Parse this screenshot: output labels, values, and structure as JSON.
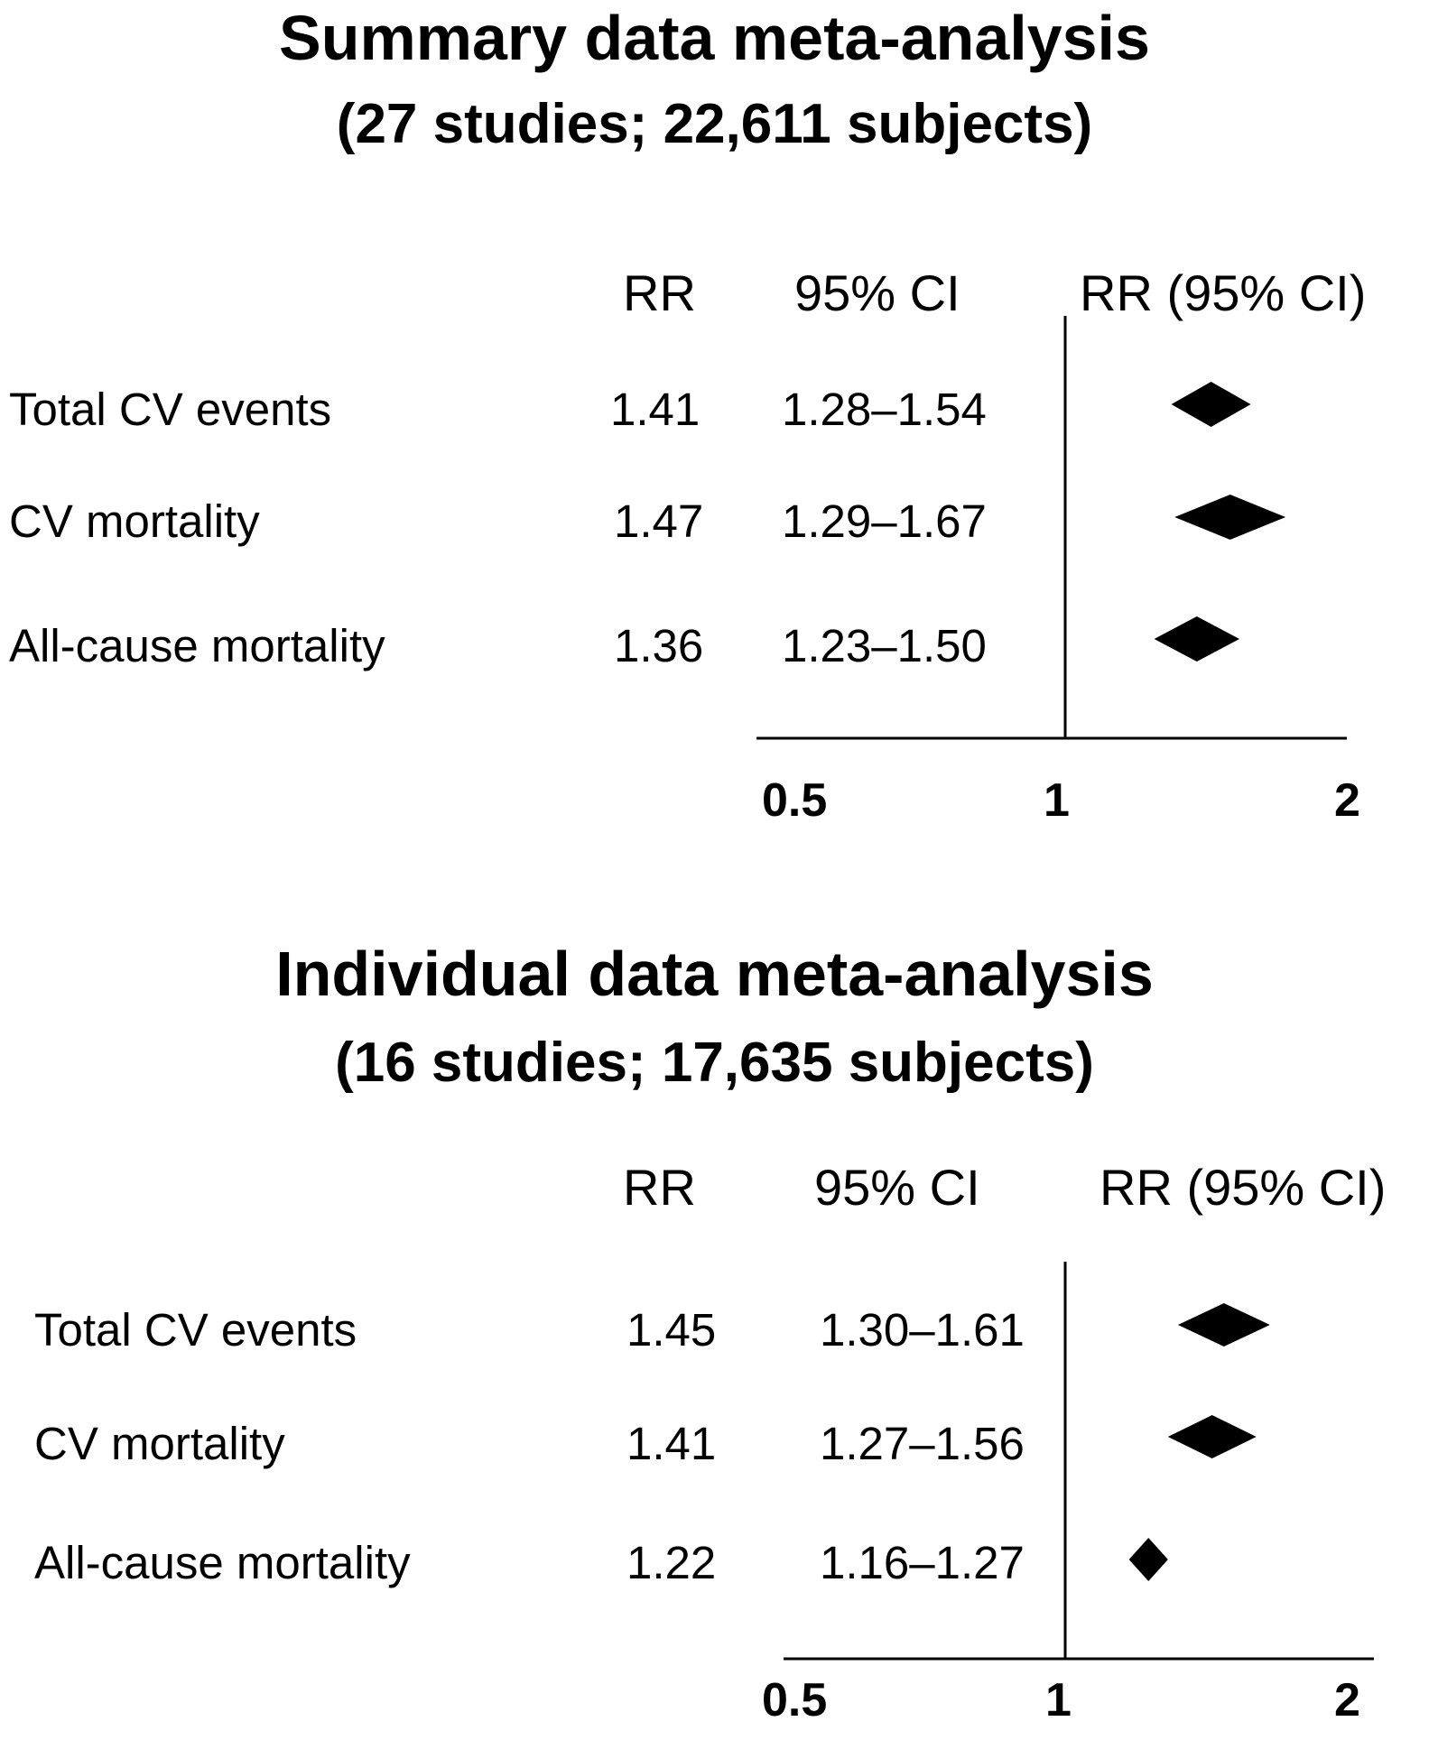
{
  "chart_data": [
    {
      "type": "forest",
      "title": "Summary data meta-analysis",
      "subtitle": "(27 studies; 22,611 subjects)",
      "columns": {
        "rr": "RR",
        "ci": "95% CI",
        "plot": "RR (95% CI)"
      },
      "rows": [
        {
          "label": "Total CV events",
          "rr": 1.41,
          "rr_text": "1.41",
          "ci_low": 1.28,
          "ci_high": 1.54,
          "ci_text": "1.28–1.54"
        },
        {
          "label": "CV mortality",
          "rr": 1.47,
          "rr_text": "1.47",
          "ci_low": 1.29,
          "ci_high": 1.67,
          "ci_text": "1.29–1.67"
        },
        {
          "label": "All-cause mortality",
          "rr": 1.36,
          "rr_text": "1.36",
          "ci_low": 1.23,
          "ci_high": 1.5,
          "ci_text": "1.23–1.50"
        }
      ],
      "x_scale": "log",
      "x_ticks": [
        "0.5",
        "1",
        "2"
      ],
      "xlim": [
        0.5,
        2
      ],
      "reference_line": 1,
      "marker": "diamond"
    },
    {
      "type": "forest",
      "title": "Individual data meta-analysis",
      "subtitle": "(16 studies; 17,635 subjects)",
      "columns": {
        "rr": "RR",
        "ci": "95% CI",
        "plot": "RR (95% CI)"
      },
      "rows": [
        {
          "label": "Total CV events",
          "rr": 1.45,
          "rr_text": "1.45",
          "ci_low": 1.3,
          "ci_high": 1.61,
          "ci_text": "1.30–1.61"
        },
        {
          "label": "CV mortality",
          "rr": 1.41,
          "rr_text": "1.41",
          "ci_low": 1.27,
          "ci_high": 1.56,
          "ci_text": "1.27–1.56"
        },
        {
          "label": "All-cause mortality",
          "rr": 1.22,
          "rr_text": "1.22",
          "ci_low": 1.16,
          "ci_high": 1.27,
          "ci_text": "1.16–1.27"
        }
      ],
      "x_scale": "log",
      "x_ticks": [
        "0.5",
        "1",
        "2"
      ],
      "xlim": [
        0.5,
        2
      ],
      "reference_line": 1,
      "marker": "diamond"
    }
  ]
}
